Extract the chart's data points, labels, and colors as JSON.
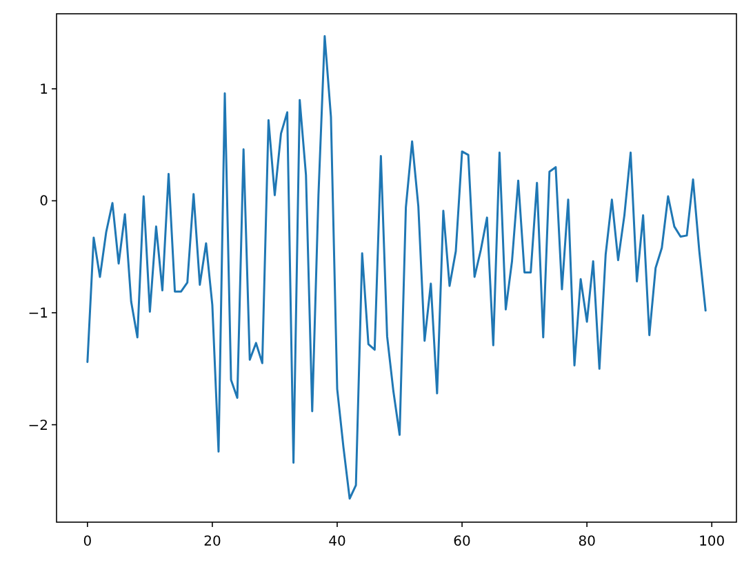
{
  "chart_data": {
    "type": "line",
    "x": [
      0,
      1,
      2,
      3,
      4,
      5,
      6,
      7,
      8,
      9,
      10,
      11,
      12,
      13,
      14,
      15,
      16,
      17,
      18,
      19,
      20,
      21,
      22,
      23,
      24,
      25,
      26,
      27,
      28,
      29,
      30,
      31,
      32,
      33,
      34,
      35,
      36,
      37,
      38,
      39,
      40,
      41,
      42,
      43,
      44,
      45,
      46,
      47,
      48,
      49,
      50,
      51,
      52,
      53,
      54,
      55,
      56,
      57,
      58,
      59,
      60,
      61,
      62,
      63,
      64,
      65,
      66,
      67,
      68,
      69,
      70,
      71,
      72,
      73,
      74,
      75,
      76,
      77,
      78,
      79,
      80,
      81,
      82,
      83,
      84,
      85,
      86,
      87,
      88,
      89,
      90,
      91,
      92,
      93,
      94,
      95,
      96,
      97,
      98,
      99
    ],
    "series": [
      {
        "color": "#1f77b4",
        "values": [
          -1.44,
          -0.33,
          -0.68,
          -0.28,
          -0.02,
          -0.56,
          -0.12,
          -0.9,
          -1.22,
          0.04,
          -0.99,
          -0.23,
          -0.8,
          0.24,
          -0.81,
          -0.81,
          -0.73,
          0.06,
          -0.75,
          -0.38,
          -0.93,
          -2.24,
          0.96,
          -1.6,
          -1.76,
          0.46,
          -1.42,
          -1.27,
          -1.45,
          0.72,
          0.05,
          0.6,
          0.79,
          -2.34,
          0.9,
          0.23,
          -1.88,
          0.05,
          1.47,
          0.75,
          -1.68,
          -2.2,
          -2.66,
          -2.54,
          -0.47,
          -1.28,
          -1.33,
          0.4,
          -1.21,
          -1.7,
          -2.09,
          -0.06,
          0.53,
          -0.05,
          -1.25,
          -0.74,
          -1.72,
          -0.09,
          -0.76,
          -0.45,
          0.44,
          0.41,
          -0.68,
          -0.44,
          -0.15,
          -1.29,
          0.43,
          -0.97,
          -0.54,
          0.18,
          -0.64,
          -0.64,
          0.16,
          -1.22,
          0.26,
          0.3,
          -0.79,
          0.01,
          -1.47,
          -0.7,
          -1.08,
          -0.54,
          -1.5,
          -0.48,
          0.01,
          -0.53,
          -0.13,
          0.43,
          -0.72,
          -0.13,
          -1.2,
          -0.6,
          -0.42,
          0.04,
          -0.23,
          -0.32,
          -0.31,
          0.19,
          -0.45,
          -0.98
        ]
      }
    ],
    "xlim": [
      -4.95,
      103.95
    ],
    "xticks": [
      0,
      20,
      40,
      60,
      80,
      100
    ],
    "ylim": [
      -2.87,
      1.67
    ],
    "yticks": [
      {
        "value": -2,
        "label": "−2"
      },
      {
        "value": -1,
        "label": "−1"
      },
      0,
      1
    ],
    "grid": false,
    "marker": "none",
    "line_style": "solid"
  }
}
